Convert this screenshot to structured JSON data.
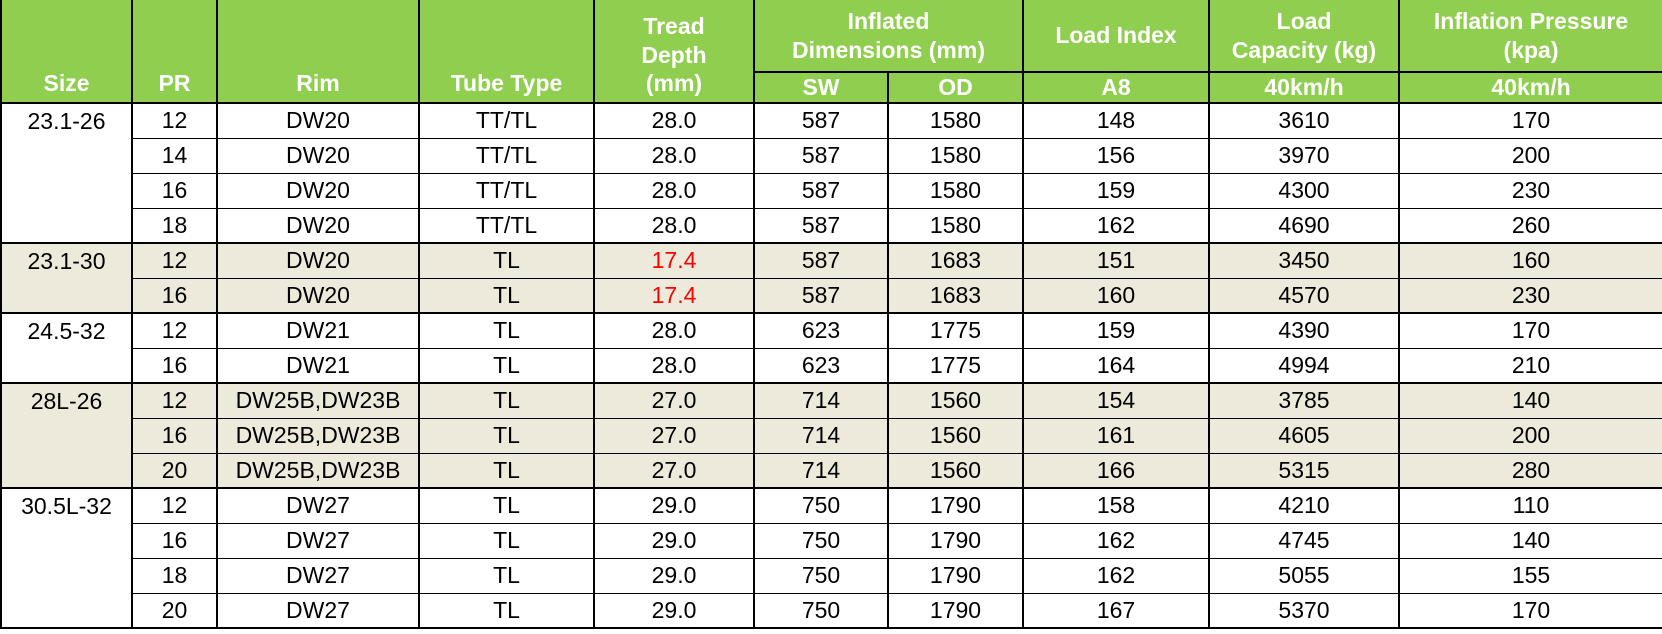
{
  "table": {
    "header": {
      "size": "Size",
      "pr": "PR",
      "rim": "Rim",
      "tube_type": "Tube Type",
      "tread_depth": "Tread\nDepth\n(mm)",
      "inflated_dimensions": "Inflated\nDimensions (mm)",
      "sw": "SW",
      "od": "OD",
      "load_index": "Load Index",
      "load_index_sub": "A8",
      "load_capacity": "Load\nCapacity (kg)",
      "load_capacity_sub": "40km/h",
      "inflation_pressure": "Inflation Pressure\n(kpa)",
      "inflation_pressure_sub": "40km/h"
    },
    "column_keys": [
      "pr",
      "rim",
      "tube_type",
      "tread_depth",
      "sw",
      "od",
      "load_index",
      "load_capacity",
      "inflation_pressure"
    ],
    "groups": [
      {
        "size": "23.1-26",
        "shaded": false,
        "rows": [
          {
            "pr": "12",
            "rim": "DW20",
            "tube_type": "TT/TL",
            "tread_depth": "28.0",
            "tread_red": false,
            "sw": "587",
            "od": "1580",
            "load_index": "148",
            "load_capacity": "3610",
            "inflation_pressure": "170"
          },
          {
            "pr": "14",
            "rim": "DW20",
            "tube_type": "TT/TL",
            "tread_depth": "28.0",
            "tread_red": false,
            "sw": "587",
            "od": "1580",
            "load_index": "156",
            "load_capacity": "3970",
            "inflation_pressure": "200"
          },
          {
            "pr": "16",
            "rim": "DW20",
            "tube_type": "TT/TL",
            "tread_depth": "28.0",
            "tread_red": false,
            "sw": "587",
            "od": "1580",
            "load_index": "159",
            "load_capacity": "4300",
            "inflation_pressure": "230"
          },
          {
            "pr": "18",
            "rim": "DW20",
            "tube_type": "TT/TL",
            "tread_depth": "28.0",
            "tread_red": false,
            "sw": "587",
            "od": "1580",
            "load_index": "162",
            "load_capacity": "4690",
            "inflation_pressure": "260"
          }
        ]
      },
      {
        "size": "23.1-30",
        "shaded": true,
        "rows": [
          {
            "pr": "12",
            "rim": "DW20",
            "tube_type": "TL",
            "tread_depth": "17.4",
            "tread_red": true,
            "sw": "587",
            "od": "1683",
            "load_index": "151",
            "load_capacity": "3450",
            "inflation_pressure": "160"
          },
          {
            "pr": "16",
            "rim": "DW20",
            "tube_type": "TL",
            "tread_depth": "17.4",
            "tread_red": true,
            "sw": "587",
            "od": "1683",
            "load_index": "160",
            "load_capacity": "4570",
            "inflation_pressure": "230"
          }
        ]
      },
      {
        "size": "24.5-32",
        "shaded": false,
        "rows": [
          {
            "pr": "12",
            "rim": "DW21",
            "tube_type": "TL",
            "tread_depth": "28.0",
            "tread_red": false,
            "sw": "623",
            "od": "1775",
            "load_index": "159",
            "load_capacity": "4390",
            "inflation_pressure": "170"
          },
          {
            "pr": "16",
            "rim": "DW21",
            "tube_type": "TL",
            "tread_depth": "28.0",
            "tread_red": false,
            "sw": "623",
            "od": "1775",
            "load_index": "164",
            "load_capacity": "4994",
            "inflation_pressure": "210"
          }
        ]
      },
      {
        "size": "28L-26",
        "shaded": true,
        "rows": [
          {
            "pr": "12",
            "rim": "DW25B,DW23B",
            "tube_type": "TL",
            "tread_depth": "27.0",
            "tread_red": false,
            "sw": "714",
            "od": "1560",
            "load_index": "154",
            "load_capacity": "3785",
            "inflation_pressure": "140"
          },
          {
            "pr": "16",
            "rim": "DW25B,DW23B",
            "tube_type": "TL",
            "tread_depth": "27.0",
            "tread_red": false,
            "sw": "714",
            "od": "1560",
            "load_index": "161",
            "load_capacity": "4605",
            "inflation_pressure": "200"
          },
          {
            "pr": "20",
            "rim": "DW25B,DW23B",
            "tube_type": "TL",
            "tread_depth": "27.0",
            "tread_red": false,
            "sw": "714",
            "od": "1560",
            "load_index": "166",
            "load_capacity": "5315",
            "inflation_pressure": "280"
          }
        ]
      },
      {
        "size": "30.5L-32",
        "shaded": false,
        "rows": [
          {
            "pr": "12",
            "rim": "DW27",
            "tube_type": "TL",
            "tread_depth": "29.0",
            "tread_red": false,
            "sw": "750",
            "od": "1790",
            "load_index": "158",
            "load_capacity": "4210",
            "inflation_pressure": "110"
          },
          {
            "pr": "16",
            "rim": "DW27",
            "tube_type": "TL",
            "tread_depth": "29.0",
            "tread_red": false,
            "sw": "750",
            "od": "1790",
            "load_index": "162",
            "load_capacity": "4745",
            "inflation_pressure": "140"
          },
          {
            "pr": "18",
            "rim": "DW27",
            "tube_type": "TL",
            "tread_depth": "29.0",
            "tread_red": false,
            "sw": "750",
            "od": "1790",
            "load_index": "162",
            "load_capacity": "5055",
            "inflation_pressure": "155"
          },
          {
            "pr": "20",
            "rim": "DW27",
            "tube_type": "TL",
            "tread_depth": "29.0",
            "tread_red": false,
            "sw": "750",
            "od": "1790",
            "load_index": "167",
            "load_capacity": "5370",
            "inflation_pressure": "170"
          }
        ]
      }
    ],
    "colors": {
      "header_bg": "#8FCE4E",
      "header_text": "#FFFFFF",
      "shaded_row_bg": "#EDEADC",
      "highlight_text": "#FF0000",
      "border": "#000000"
    }
  }
}
